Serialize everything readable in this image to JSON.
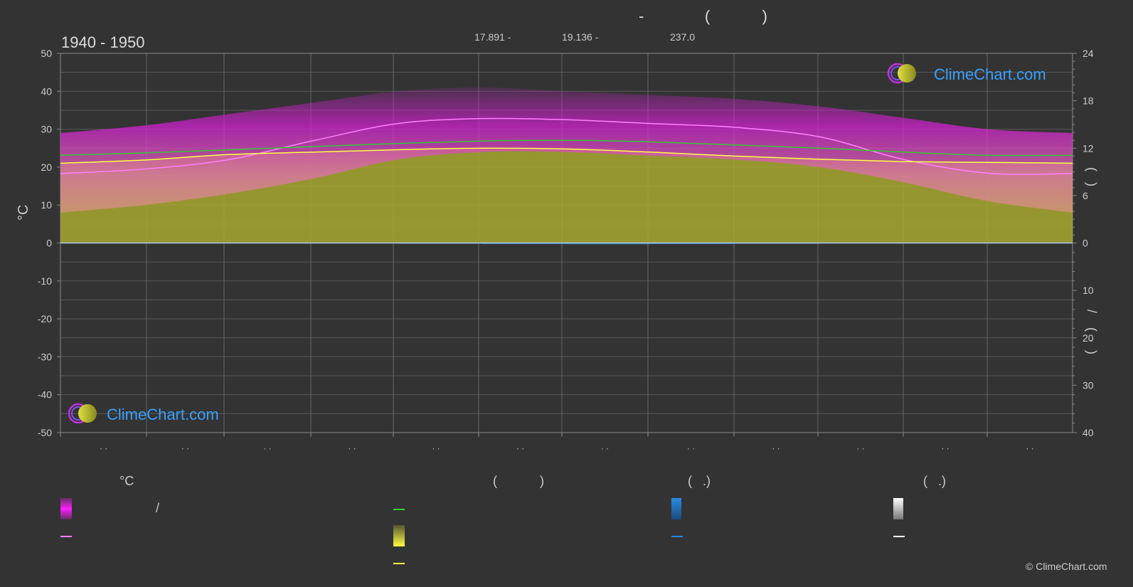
{
  "page": {
    "title": "-              (            )",
    "subtitle_items": [
      "17.891 -",
      "19.136 -",
      "237.0"
    ],
    "period": "1940 - 1950",
    "brand": "ClimeChart.com",
    "copyright": "© ClimeChart.com"
  },
  "chart_data": {
    "type": "area",
    "left_axis_label": "°C",
    "right_axis_label_top": "(   )",
    "right_axis_label_bottom": "/    (  ·  )",
    "left_ticks": [
      "50",
      "40",
      "30",
      "20",
      "10",
      "0",
      "-10",
      "-20",
      "-30",
      "-40",
      "-50"
    ],
    "right_ticks_top": [
      "24",
      "18",
      "12",
      "6",
      "0"
    ],
    "right_ticks_bottom": [
      "10",
      "20",
      "30",
      "40"
    ],
    "x_tick_labels": [
      "· ·",
      "· ·",
      "· ·",
      "· ·",
      "· ·",
      "· ·",
      "· ·",
      "· ·",
      "· ·",
      "· ·",
      "· ·",
      "· ·"
    ],
    "ylim_left": [
      -50,
      50
    ],
    "ylim_right_top": [
      0,
      24
    ],
    "ylim_right_bottom": [
      0,
      40
    ],
    "grid": true,
    "x": [
      0,
      1,
      2,
      3,
      4,
      5,
      6,
      7,
      8,
      9,
      10,
      11,
      12
    ],
    "series": [
      {
        "key": "daily_max",
        "values": [
          29,
          31,
          34,
          37,
          40,
          41,
          40,
          39,
          38,
          36,
          33,
          30,
          29
        ]
      },
      {
        "key": "daily_min",
        "values": [
          8,
          10,
          13,
          17,
          22,
          24,
          24,
          23,
          22,
          20,
          16,
          11,
          8
        ]
      },
      {
        "key": "avg_max",
        "values": [
          18.3,
          19.5,
          22,
          27,
          31.5,
          32.8,
          32.5,
          31.5,
          30.5,
          28,
          22,
          18.4,
          18.3
        ]
      },
      {
        "key": "daylight_hours",
        "values": [
          11.1,
          11.4,
          11.8,
          12.2,
          12.6,
          12.9,
          13.0,
          12.8,
          12.4,
          12.0,
          11.5,
          11.1,
          11.1
        ]
      },
      {
        "key": "sunshine_hours",
        "values": [
          10.1,
          10.5,
          11.2,
          11.5,
          11.8,
          12.0,
          11.9,
          11.5,
          11.0,
          10.6,
          10.3,
          10.2,
          10.1
        ]
      },
      {
        "key": "precipitation_mm",
        "values": [
          0,
          0,
          0,
          0,
          0.1,
          0.2,
          0.3,
          0.3,
          0.2,
          0.1,
          0,
          0,
          0
        ]
      }
    ],
    "colors": {
      "daily_range": "#e020e0",
      "avg_max_line": "#ff80ff",
      "daylight_line": "#33cc33",
      "sunshine_area": "#a8a830",
      "sunshine_line": "#ffff44",
      "precip": "#2288dd",
      "zero_line": "#aaccee"
    }
  },
  "legend": {
    "col1": {
      "header": "°C",
      "item1": "/"
    },
    "col2": {
      "header": "(            )"
    },
    "col3": {
      "header": "(   .)"
    },
    "col4": {
      "header": "(   .)"
    }
  }
}
